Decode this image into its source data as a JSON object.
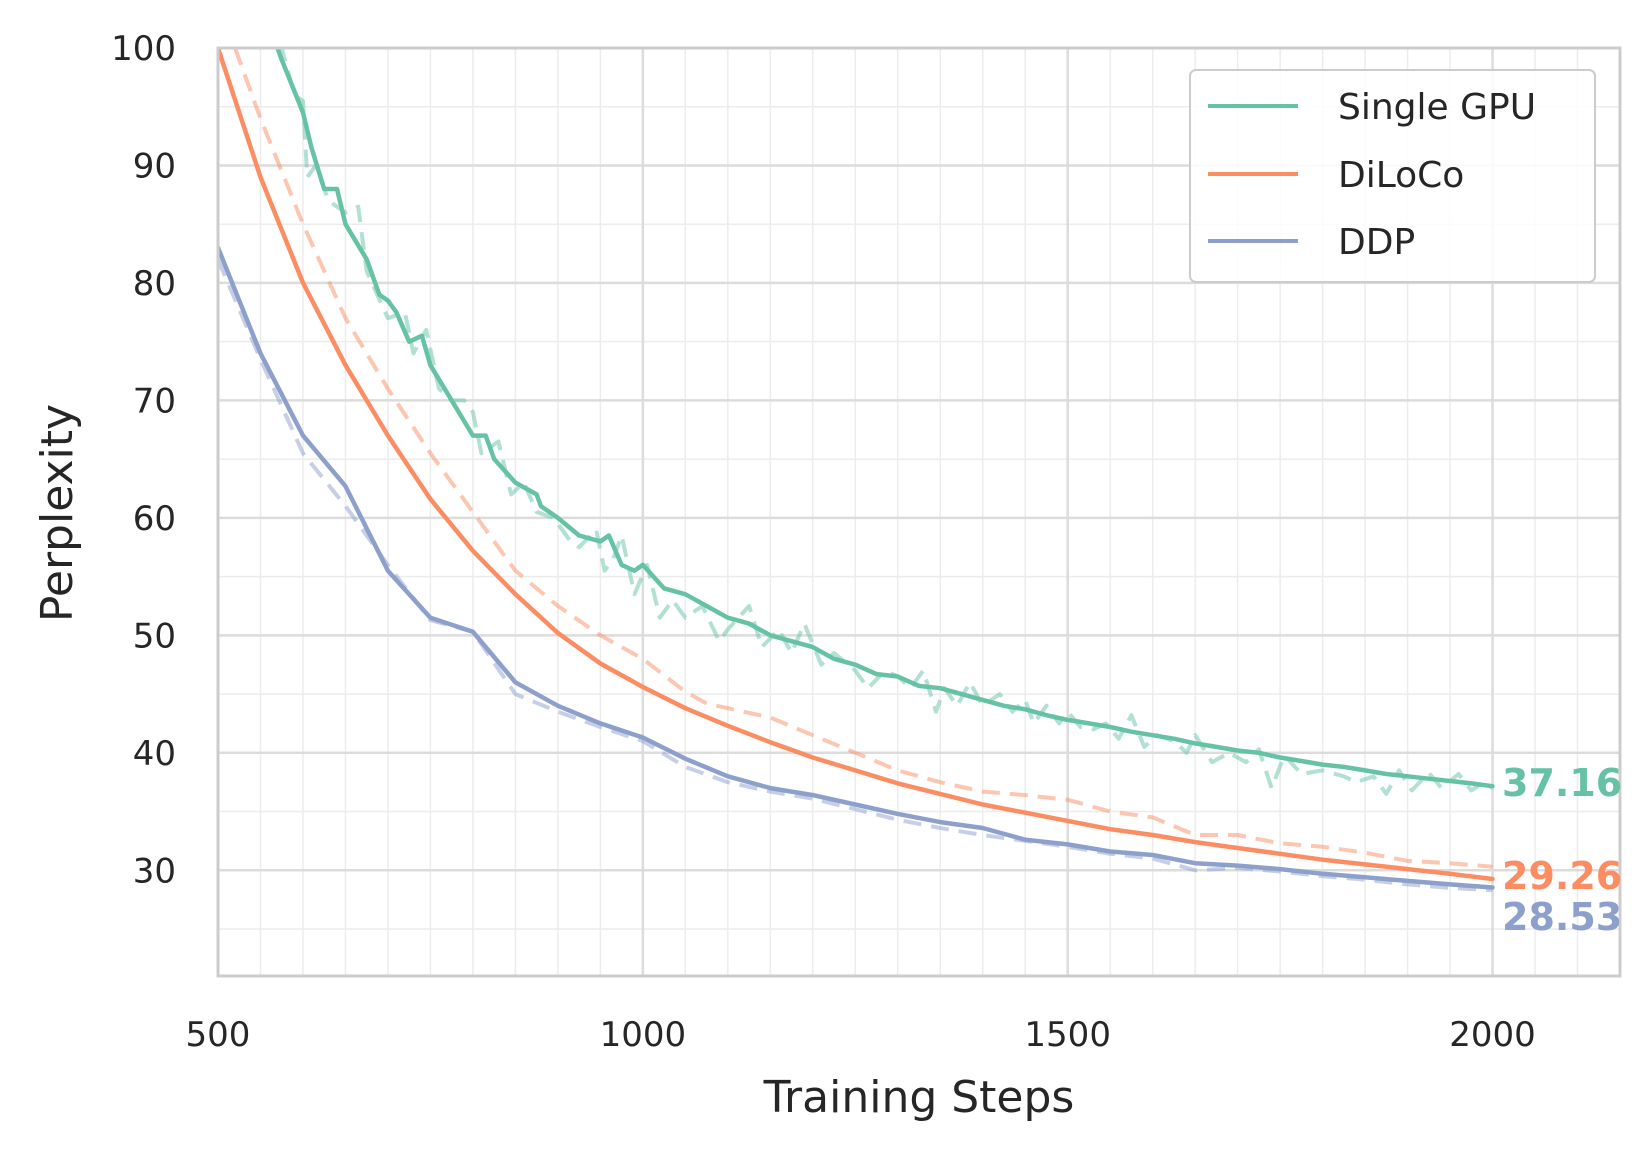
{
  "chart_data": {
    "type": "line",
    "title": "",
    "xlabel": "Training Steps",
    "ylabel": "Perplexity",
    "xlim": [
      500,
      2150
    ],
    "ylim": [
      21,
      100
    ],
    "xticks": [
      500,
      1000,
      1500,
      2000
    ],
    "yticks": [
      30,
      40,
      50,
      60,
      70,
      80,
      90,
      100
    ],
    "x_minor_step": 50,
    "y_minor_step": 5,
    "grid": true,
    "legend_position": "top-right",
    "series": [
      {
        "name": "Single GPU",
        "color": "#66c2a5",
        "final_label": "37.16",
        "smoothed": [
          [
            570,
            100
          ],
          [
            575,
            99
          ],
          [
            600,
            94.5
          ],
          [
            610,
            91.5
          ],
          [
            625,
            88
          ],
          [
            640,
            88
          ],
          [
            650,
            85
          ],
          [
            675,
            82
          ],
          [
            690,
            79
          ],
          [
            700,
            78.5
          ],
          [
            710,
            77.5
          ],
          [
            725,
            75
          ],
          [
            740,
            75.5
          ],
          [
            750,
            73
          ],
          [
            775,
            70
          ],
          [
            800,
            67
          ],
          [
            815,
            67
          ],
          [
            825,
            65
          ],
          [
            850,
            63
          ],
          [
            875,
            62
          ],
          [
            880,
            61
          ],
          [
            900,
            60
          ],
          [
            925,
            58.5
          ],
          [
            950,
            58
          ],
          [
            960,
            58.5
          ],
          [
            975,
            56
          ],
          [
            990,
            55.5
          ],
          [
            1000,
            56
          ],
          [
            1025,
            54
          ],
          [
            1050,
            53.5
          ],
          [
            1075,
            52.5
          ],
          [
            1100,
            51.5
          ],
          [
            1125,
            51
          ],
          [
            1150,
            50
          ],
          [
            1175,
            49.5
          ],
          [
            1200,
            49
          ],
          [
            1225,
            48
          ],
          [
            1250,
            47.5
          ],
          [
            1275,
            46.7
          ],
          [
            1300,
            46.5
          ],
          [
            1325,
            45.7
          ],
          [
            1350,
            45.5
          ],
          [
            1375,
            45
          ],
          [
            1400,
            44.5
          ],
          [
            1425,
            44
          ],
          [
            1450,
            43.7
          ],
          [
            1475,
            43.2
          ],
          [
            1500,
            42.8
          ],
          [
            1525,
            42.5
          ],
          [
            1550,
            42.2
          ],
          [
            1575,
            41.8
          ],
          [
            1600,
            41.5
          ],
          [
            1625,
            41.2
          ],
          [
            1650,
            40.8
          ],
          [
            1675,
            40.5
          ],
          [
            1700,
            40.2
          ],
          [
            1725,
            40
          ],
          [
            1750,
            39.6
          ],
          [
            1775,
            39.3
          ],
          [
            1800,
            39
          ],
          [
            1825,
            38.8
          ],
          [
            1850,
            38.5
          ],
          [
            1875,
            38.2
          ],
          [
            1900,
            38
          ],
          [
            1925,
            37.8
          ],
          [
            1950,
            37.6
          ],
          [
            1975,
            37.4
          ],
          [
            2000,
            37.16
          ]
        ],
        "raw": [
          [
            570,
            100
          ],
          [
            575,
            100
          ],
          [
            590,
            96
          ],
          [
            600,
            95.5
          ],
          [
            605,
            89
          ],
          [
            615,
            90
          ],
          [
            630,
            87
          ],
          [
            650,
            86
          ],
          [
            665,
            86.5
          ],
          [
            675,
            81
          ],
          [
            700,
            77
          ],
          [
            720,
            77.5
          ],
          [
            730,
            74
          ],
          [
            745,
            76
          ],
          [
            760,
            71
          ],
          [
            775,
            70
          ],
          [
            790,
            70
          ],
          [
            800,
            69
          ],
          [
            810,
            65.5
          ],
          [
            830,
            66.5
          ],
          [
            845,
            62
          ],
          [
            860,
            63
          ],
          [
            875,
            60.5
          ],
          [
            895,
            60
          ],
          [
            915,
            58
          ],
          [
            925,
            57.5
          ],
          [
            945,
            59
          ],
          [
            955,
            55.5
          ],
          [
            965,
            56.5
          ],
          [
            975,
            58.5
          ],
          [
            990,
            53.5
          ],
          [
            1005,
            56
          ],
          [
            1020,
            51.5
          ],
          [
            1035,
            53
          ],
          [
            1050,
            51.5
          ],
          [
            1070,
            52.5
          ],
          [
            1090,
            49.5
          ],
          [
            1100,
            50.5
          ],
          [
            1125,
            52.5
          ],
          [
            1140,
            49
          ],
          [
            1160,
            50.5
          ],
          [
            1175,
            48.5
          ],
          [
            1190,
            51
          ],
          [
            1210,
            47.5
          ],
          [
            1225,
            48.5
          ],
          [
            1250,
            47
          ],
          [
            1265,
            45.5
          ],
          [
            1285,
            47
          ],
          [
            1300,
            46.5
          ],
          [
            1315,
            45.5
          ],
          [
            1330,
            47
          ],
          [
            1345,
            43.5
          ],
          [
            1355,
            45.5
          ],
          [
            1370,
            44
          ],
          [
            1385,
            46
          ],
          [
            1400,
            44
          ],
          [
            1420,
            45
          ],
          [
            1435,
            43.5
          ],
          [
            1450,
            44.5
          ],
          [
            1460,
            42.5
          ],
          [
            1475,
            44
          ],
          [
            1490,
            42.5
          ],
          [
            1500,
            43.5
          ],
          [
            1515,
            42.2
          ],
          [
            1530,
            42
          ],
          [
            1545,
            42.5
          ],
          [
            1560,
            41.2
          ],
          [
            1575,
            43.2
          ],
          [
            1590,
            40.5
          ],
          [
            1605,
            41.5
          ],
          [
            1625,
            41
          ],
          [
            1640,
            40
          ],
          [
            1650,
            41.5
          ],
          [
            1670,
            39.2
          ],
          [
            1690,
            40
          ],
          [
            1710,
            39.2
          ],
          [
            1725,
            40.3
          ],
          [
            1740,
            37
          ],
          [
            1755,
            39.8
          ],
          [
            1775,
            38.2
          ],
          [
            1800,
            38.5
          ],
          [
            1825,
            38
          ],
          [
            1840,
            37.5
          ],
          [
            1860,
            38
          ],
          [
            1875,
            36.5
          ],
          [
            1890,
            38.5
          ],
          [
            1905,
            36.8
          ],
          [
            1925,
            38.3
          ],
          [
            1940,
            37
          ],
          [
            1960,
            38.2
          ],
          [
            1975,
            36.8
          ],
          [
            1990,
            37.5
          ],
          [
            2000,
            37
          ]
        ]
      },
      {
        "name": "DiLoCo",
        "color": "#fc8d62",
        "final_label": "29.26",
        "smoothed": [
          [
            500,
            100
          ],
          [
            550,
            89
          ],
          [
            600,
            80
          ],
          [
            650,
            73
          ],
          [
            700,
            67
          ],
          [
            750,
            61.6
          ],
          [
            800,
            57.2
          ],
          [
            850,
            53.5
          ],
          [
            900,
            50.2
          ],
          [
            950,
            47.6
          ],
          [
            1000,
            45.6
          ],
          [
            1050,
            43.8
          ],
          [
            1100,
            42.3
          ],
          [
            1150,
            40.9
          ],
          [
            1200,
            39.6
          ],
          [
            1250,
            38.5
          ],
          [
            1300,
            37.4
          ],
          [
            1350,
            36.5
          ],
          [
            1400,
            35.6
          ],
          [
            1450,
            34.9
          ],
          [
            1500,
            34.2
          ],
          [
            1550,
            33.5
          ],
          [
            1600,
            33
          ],
          [
            1650,
            32.4
          ],
          [
            1700,
            31.9
          ],
          [
            1750,
            31.4
          ],
          [
            1800,
            30.9
          ],
          [
            1850,
            30.5
          ],
          [
            1900,
            30.1
          ],
          [
            1950,
            29.7
          ],
          [
            2000,
            29.26
          ]
        ],
        "raw": [
          [
            520,
            100
          ],
          [
            550,
            94
          ],
          [
            600,
            85
          ],
          [
            650,
            77
          ],
          [
            700,
            71
          ],
          [
            750,
            65.5
          ],
          [
            800,
            60.5
          ],
          [
            850,
            55.5
          ],
          [
            900,
            52.5
          ],
          [
            950,
            50
          ],
          [
            1000,
            48
          ],
          [
            1050,
            45.2
          ],
          [
            1075,
            44.2
          ],
          [
            1100,
            43.8
          ],
          [
            1150,
            43
          ],
          [
            1200,
            41.5
          ],
          [
            1250,
            40
          ],
          [
            1300,
            38.5
          ],
          [
            1350,
            37.5
          ],
          [
            1400,
            36.7
          ],
          [
            1450,
            36.4
          ],
          [
            1500,
            36
          ],
          [
            1550,
            35
          ],
          [
            1600,
            34.5
          ],
          [
            1650,
            33
          ],
          [
            1700,
            33
          ],
          [
            1750,
            32.3
          ],
          [
            1800,
            32
          ],
          [
            1850,
            31.5
          ],
          [
            1900,
            30.8
          ],
          [
            1950,
            30.6
          ],
          [
            2000,
            30.3
          ]
        ]
      },
      {
        "name": "DDP",
        "color": "#8da0cb",
        "final_label": "28.53",
        "smoothed": [
          [
            500,
            83
          ],
          [
            550,
            74
          ],
          [
            600,
            67
          ],
          [
            650,
            62.7
          ],
          [
            700,
            55.5
          ],
          [
            750,
            51.5
          ],
          [
            800,
            50.3
          ],
          [
            850,
            46
          ],
          [
            900,
            44
          ],
          [
            950,
            42.5
          ],
          [
            1000,
            41.3
          ],
          [
            1050,
            39.5
          ],
          [
            1100,
            38
          ],
          [
            1150,
            37
          ],
          [
            1200,
            36.4
          ],
          [
            1250,
            35.6
          ],
          [
            1300,
            34.8
          ],
          [
            1350,
            34.1
          ],
          [
            1400,
            33.6
          ],
          [
            1450,
            32.6
          ],
          [
            1500,
            32.2
          ],
          [
            1550,
            31.6
          ],
          [
            1600,
            31.3
          ],
          [
            1650,
            30.6
          ],
          [
            1700,
            30.4
          ],
          [
            1750,
            30.1
          ],
          [
            1800,
            29.7
          ],
          [
            1850,
            29.4
          ],
          [
            1900,
            29.1
          ],
          [
            1950,
            28.8
          ],
          [
            2000,
            28.53
          ]
        ],
        "raw": [
          [
            500,
            82
          ],
          [
            550,
            73.5
          ],
          [
            600,
            65.5
          ],
          [
            650,
            61
          ],
          [
            700,
            56
          ],
          [
            750,
            51.3
          ],
          [
            800,
            50.3
          ],
          [
            850,
            45
          ],
          [
            900,
            43.5
          ],
          [
            950,
            42.2
          ],
          [
            1000,
            41
          ],
          [
            1050,
            38.8
          ],
          [
            1100,
            37.5
          ],
          [
            1150,
            36.7
          ],
          [
            1200,
            36.1
          ],
          [
            1250,
            35.2
          ],
          [
            1300,
            34.3
          ],
          [
            1350,
            33.6
          ],
          [
            1400,
            33
          ],
          [
            1450,
            32.5
          ],
          [
            1500,
            32
          ],
          [
            1550,
            31.4
          ],
          [
            1600,
            31
          ],
          [
            1650,
            30
          ],
          [
            1700,
            30.2
          ],
          [
            1750,
            29.9
          ],
          [
            1800,
            29.5
          ],
          [
            1850,
            29.2
          ],
          [
            1900,
            28.8
          ],
          [
            1950,
            28.5
          ],
          [
            2000,
            28.3
          ]
        ]
      }
    ]
  }
}
